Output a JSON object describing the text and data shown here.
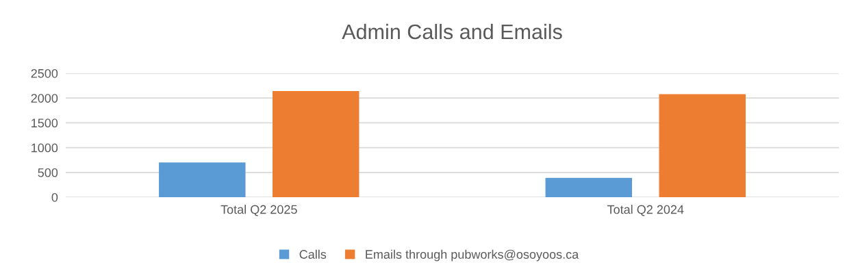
{
  "chart_data": {
    "type": "bar",
    "title": "Admin Calls and Emails",
    "categories": [
      "Total Q2 2025",
      "Total Q2 2024"
    ],
    "series": [
      {
        "name": "Calls",
        "color": "#5b9bd5",
        "values": [
          700,
          390
        ]
      },
      {
        "name": "Emails through pubworks@osoyoos.ca",
        "color": "#ed7d31",
        "values": [
          2140,
          2080
        ]
      }
    ],
    "ylim": [
      0,
      2500
    ],
    "yticks": [
      0,
      500,
      1000,
      1500,
      2000,
      2500
    ],
    "grid": "y",
    "legend": "bottom"
  }
}
